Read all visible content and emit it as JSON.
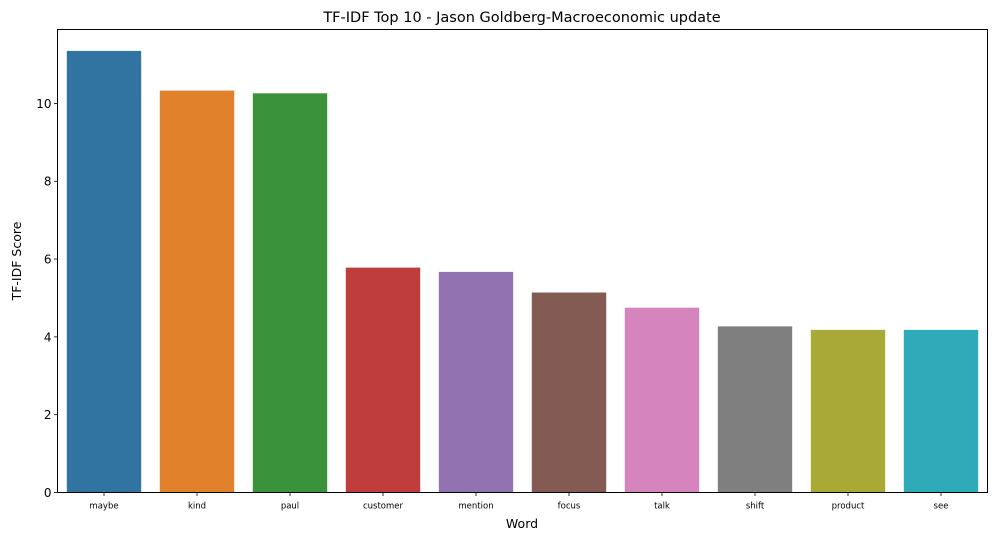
{
  "chart_data": {
    "type": "bar",
    "title": "TF-IDF Top 10 - Jason Goldberg-Macroeconomic update",
    "xlabel": "Word",
    "ylabel": "TF-IDF Score",
    "categories": [
      "maybe",
      "kind",
      "paul",
      "customer",
      "mention",
      "focus",
      "talk",
      "shift",
      "product",
      "see"
    ],
    "values": [
      11.35,
      10.33,
      10.26,
      5.78,
      5.67,
      5.14,
      4.75,
      4.27,
      4.18,
      4.18
    ],
    "colors": [
      "#3274a1",
      "#e1812c",
      "#3a923a",
      "#c03d3e",
      "#9372b2",
      "#845b53",
      "#d684bd",
      "#7f7f7f",
      "#a9aa35",
      "#2eaab8"
    ],
    "ylim": [
      0,
      11.9
    ],
    "yticks": [
      0,
      2,
      4,
      6,
      8,
      10
    ],
    "grid": false,
    "legend": "none"
  }
}
